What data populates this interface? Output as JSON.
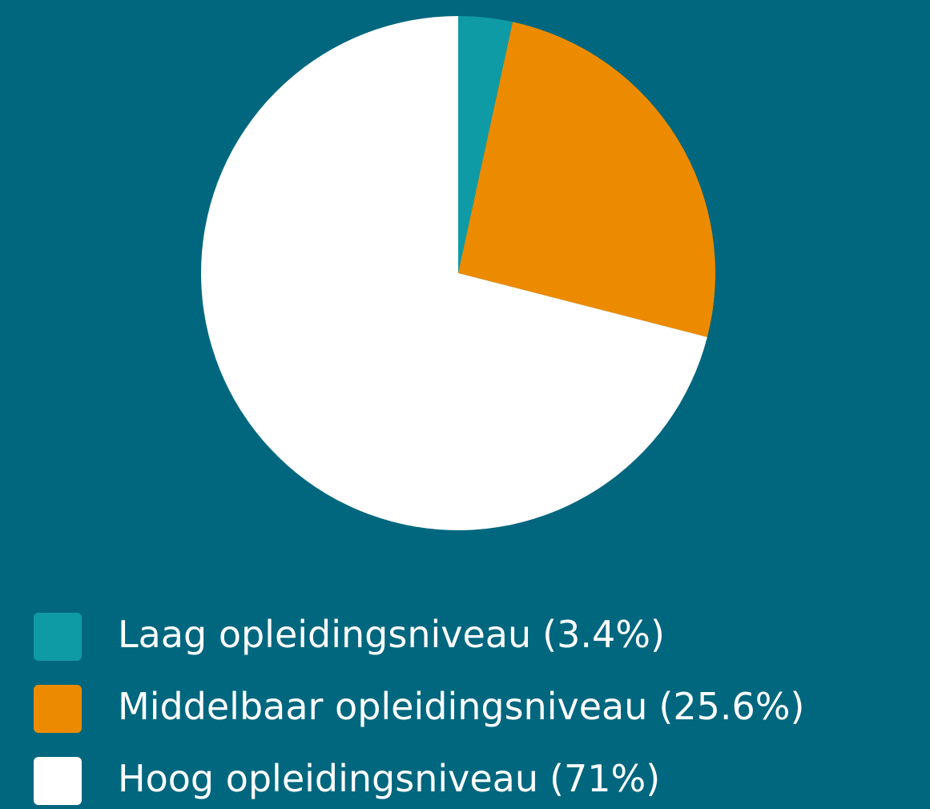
{
  "chart_data": {
    "type": "pie",
    "categories": [
      "Laag opleidingsniveau",
      "Middelbaar opleidingsniveau",
      "Hoog opleidingsniveau"
    ],
    "values": [
      3.4,
      25.6,
      71
    ],
    "value_labels": [
      "(3.4%)",
      "(25.6%)",
      "(71%)"
    ],
    "colors": [
      "#0f9ba6",
      "#ec8b00",
      "#ffffff"
    ],
    "legend": "bottom"
  }
}
